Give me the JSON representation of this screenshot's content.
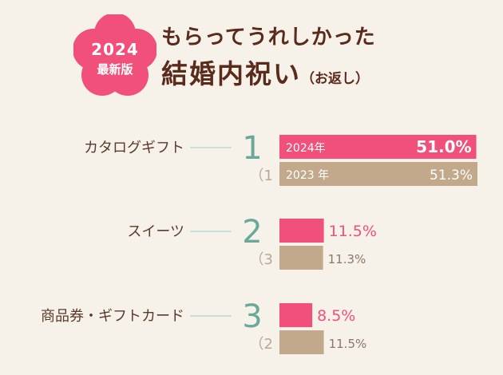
{
  "header": {
    "badge_year": "2024",
    "badge_label": "最新版",
    "title_line1": "もらってうれしかった",
    "title_line2": "結婚内祝い",
    "title_sub": "（お返し）"
  },
  "colors": {
    "bar_2024": "#f0507a",
    "bar_2023": "#c2a98c",
    "rank_number": "#6aa89a",
    "label_text": "#5a3a2a",
    "badge": "#f0507a"
  },
  "chart_data": {
    "type": "bar",
    "orientation": "horizontal",
    "title": "もらってうれしかった結婚内祝い（お返し）",
    "xlim": [
      0,
      51.3
    ],
    "grid": false,
    "categories": [
      "カタログギフト",
      "スイーツ",
      "商品券・ギフトカード"
    ],
    "ranks_2024": [
      "1",
      "2",
      "3"
    ],
    "ranks_2023": [
      "（1",
      "（3",
      "（2"
    ],
    "series": [
      {
        "name": "2024年",
        "values": [
          51.0,
          11.5,
          8.5
        ],
        "value_labels": [
          "51.0%",
          "11.5%",
          "8.5%"
        ],
        "color": "#f0507a"
      },
      {
        "name": "2023 年",
        "values": [
          51.3,
          11.3,
          11.5
        ],
        "value_labels": [
          "51.3%",
          "11.3%",
          "11.5%"
        ],
        "color": "#c2a98c"
      }
    ]
  }
}
